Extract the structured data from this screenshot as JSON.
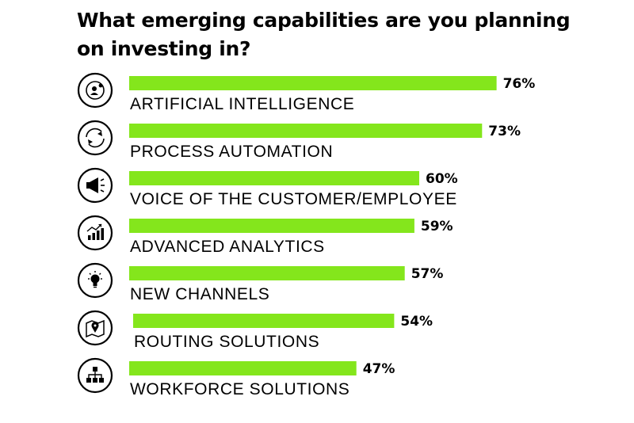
{
  "chart_data": {
    "type": "bar",
    "orientation": "horizontal",
    "title": "What emerging capabilities are you planning on investing in?",
    "categories": [
      "ARTIFICIAL INTELLIGENCE",
      "PROCESS AUTOMATION",
      "VOICE OF THE CUSTOMER/EMPLOYEE",
      "ADVANCED ANALYTICS",
      "NEW CHANNELS",
      "ROUTING SOLUTIONS",
      "WORKFORCE SOLUTIONS"
    ],
    "values": [
      76,
      73,
      60,
      59,
      57,
      54,
      47
    ],
    "value_labels": [
      "76%",
      "73%",
      "60%",
      "59%",
      "57%",
      "54%",
      "47%"
    ],
    "icons": [
      "ai-head-icon",
      "refresh-cycle-icon",
      "megaphone-icon",
      "growth-chart-icon",
      "lightbulb-icon",
      "map-pin-icon",
      "org-chart-icon"
    ],
    "unit": "%",
    "xlim": [
      0,
      100
    ],
    "bar_color": "#84e61c"
  }
}
